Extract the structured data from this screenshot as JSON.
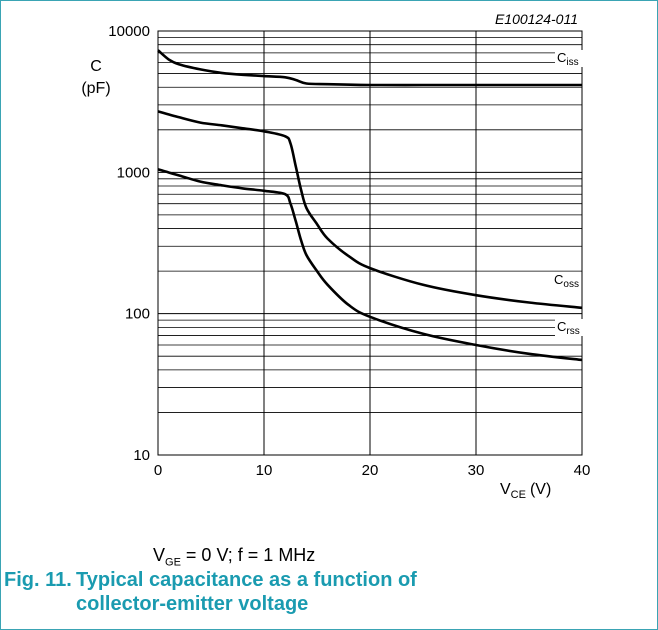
{
  "chart_data": {
    "type": "line",
    "code": "E100124-011",
    "ylabel_symbol": "C",
    "ylabel_unit": "(pF)",
    "xlabel_symbol": "V",
    "xlabel_sub": "CE",
    "xlabel_unit": "(V)",
    "xlim": [
      0,
      40
    ],
    "ylim": [
      10,
      10000
    ],
    "y_scale": "log",
    "grid": true,
    "x_ticks": [
      0,
      10,
      20,
      30,
      40
    ],
    "y_ticks": [
      10,
      100,
      1000,
      10000
    ],
    "series": [
      {
        "name": "C",
        "name_sub": "iss",
        "x": [
          0,
          1,
          2,
          4,
          6,
          8,
          10,
          12,
          13,
          14,
          16,
          20,
          25,
          30,
          35,
          40
        ],
        "y": [
          7300,
          6300,
          5800,
          5350,
          5050,
          4900,
          4800,
          4700,
          4500,
          4250,
          4200,
          4150,
          4150,
          4150,
          4150,
          4150
        ]
      },
      {
        "name": "C",
        "name_sub": "oss",
        "x": [
          0,
          2,
          4,
          6,
          8,
          10,
          12,
          12.5,
          13,
          13.5,
          14,
          15,
          16,
          18,
          20,
          25,
          30,
          35,
          40
        ],
        "y": [
          2700,
          2450,
          2250,
          2150,
          2050,
          1950,
          1800,
          1600,
          1100,
          750,
          560,
          430,
          340,
          255,
          210,
          160,
          135,
          120,
          110
        ]
      },
      {
        "name": "C",
        "name_sub": "rss",
        "x": [
          0,
          2,
          4,
          6,
          8,
          10,
          12,
          12.5,
          13,
          13.5,
          14,
          15,
          16,
          18,
          20,
          25,
          30,
          35,
          40
        ],
        "y": [
          1050,
          950,
          860,
          810,
          770,
          740,
          700,
          600,
          450,
          330,
          260,
          200,
          160,
          115,
          95,
          72,
          60,
          52,
          47
        ]
      }
    ]
  },
  "conditions": {
    "v": "V",
    "v_sub": "GE",
    "rest": " = 0 V; f = 1 MHz"
  },
  "caption": {
    "number": "Fig. 11.",
    "line1": "Typical capacitance as a function of",
    "line2": "collector-emitter voltage"
  }
}
